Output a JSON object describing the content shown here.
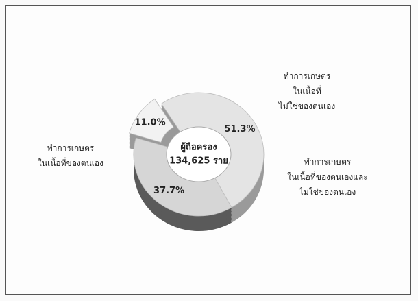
{
  "chart_data": {
    "type": "pie",
    "donut": true,
    "categories": [
      "ทำการเกษตร\nในเนื้อที่ของตนเอง",
      "ทำการเกษตร\nในเนื้อที่\nไม่ใช่ของตนเอง",
      "ทำการเกษตร\nในเนื้อที่ของตนเองและ\nไม่ใช่ของตนเอง"
    ],
    "values": [
      51.3,
      37.7,
      11.0
    ],
    "value_labels": [
      "51.3%",
      "37.7%",
      "11.0%"
    ],
    "colors": [
      "#e4e4e4",
      "#d6d6d6",
      "#f2f2f2"
    ],
    "center_label": [
      "ผู้ถือครอง",
      "134,625 ราย"
    ]
  }
}
